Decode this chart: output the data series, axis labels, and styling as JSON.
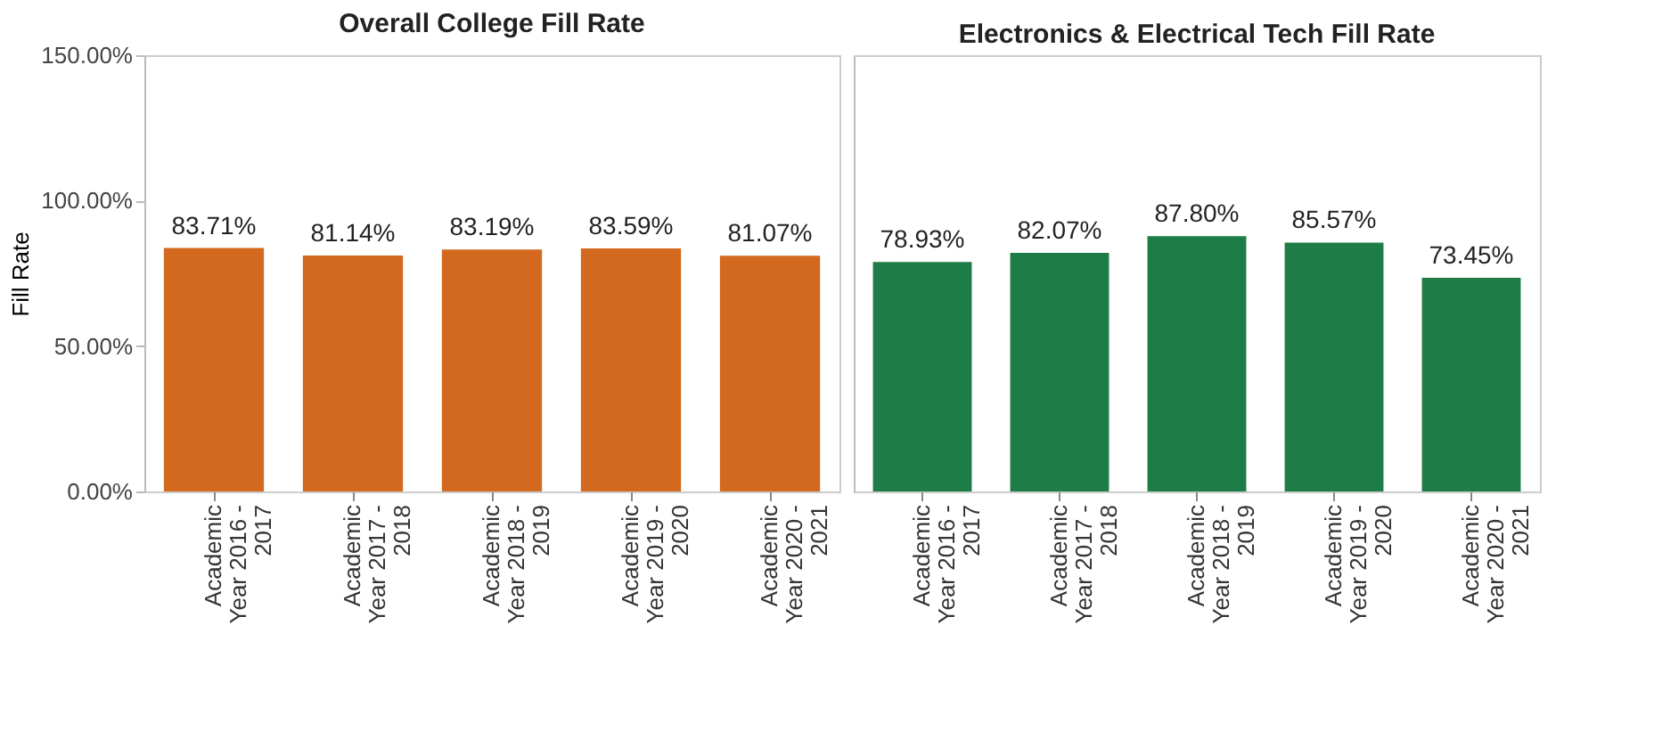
{
  "chart_data": [
    {
      "type": "bar",
      "title": "Overall College Fill Rate",
      "ylabel": "Fill Rate",
      "categories": [
        "Academic Year 2016 - 2017",
        "Academic Year 2017 - 2018",
        "Academic Year 2018 - 2019",
        "Academic Year 2019 - 2020",
        "Academic Year 2020 - 2021"
      ],
      "values": [
        83.71,
        81.14,
        83.19,
        83.59,
        81.07
      ],
      "value_labels": [
        "83.71%",
        "81.14%",
        "83.19%",
        "83.59%",
        "81.07%"
      ],
      "color": "#d2691e",
      "ylim": [
        0,
        150
      ],
      "yticks": [
        {
          "value": 0,
          "label": "0.00%"
        },
        {
          "value": 50,
          "label": "50.00%"
        },
        {
          "value": 100,
          "label": "100.00%"
        },
        {
          "value": 150,
          "label": "150.00%"
        }
      ],
      "grid": false
    },
    {
      "type": "bar",
      "title": "Electronics & Electrical Tech Fill Rate",
      "categories": [
        "Academic Year 2016 - 2017",
        "Academic Year 2017 - 2018",
        "Academic Year 2018 - 2019",
        "Academic Year 2019 - 2020",
        "Academic Year 2020 - 2021"
      ],
      "values": [
        78.93,
        82.07,
        87.8,
        85.57,
        73.45
      ],
      "value_labels": [
        "78.93%",
        "82.07%",
        "87.80%",
        "85.57%",
        "73.45%"
      ],
      "color": "#1e7d46",
      "ylim": [
        0,
        150
      ],
      "tick_labels": "x",
      "grid": false
    }
  ]
}
